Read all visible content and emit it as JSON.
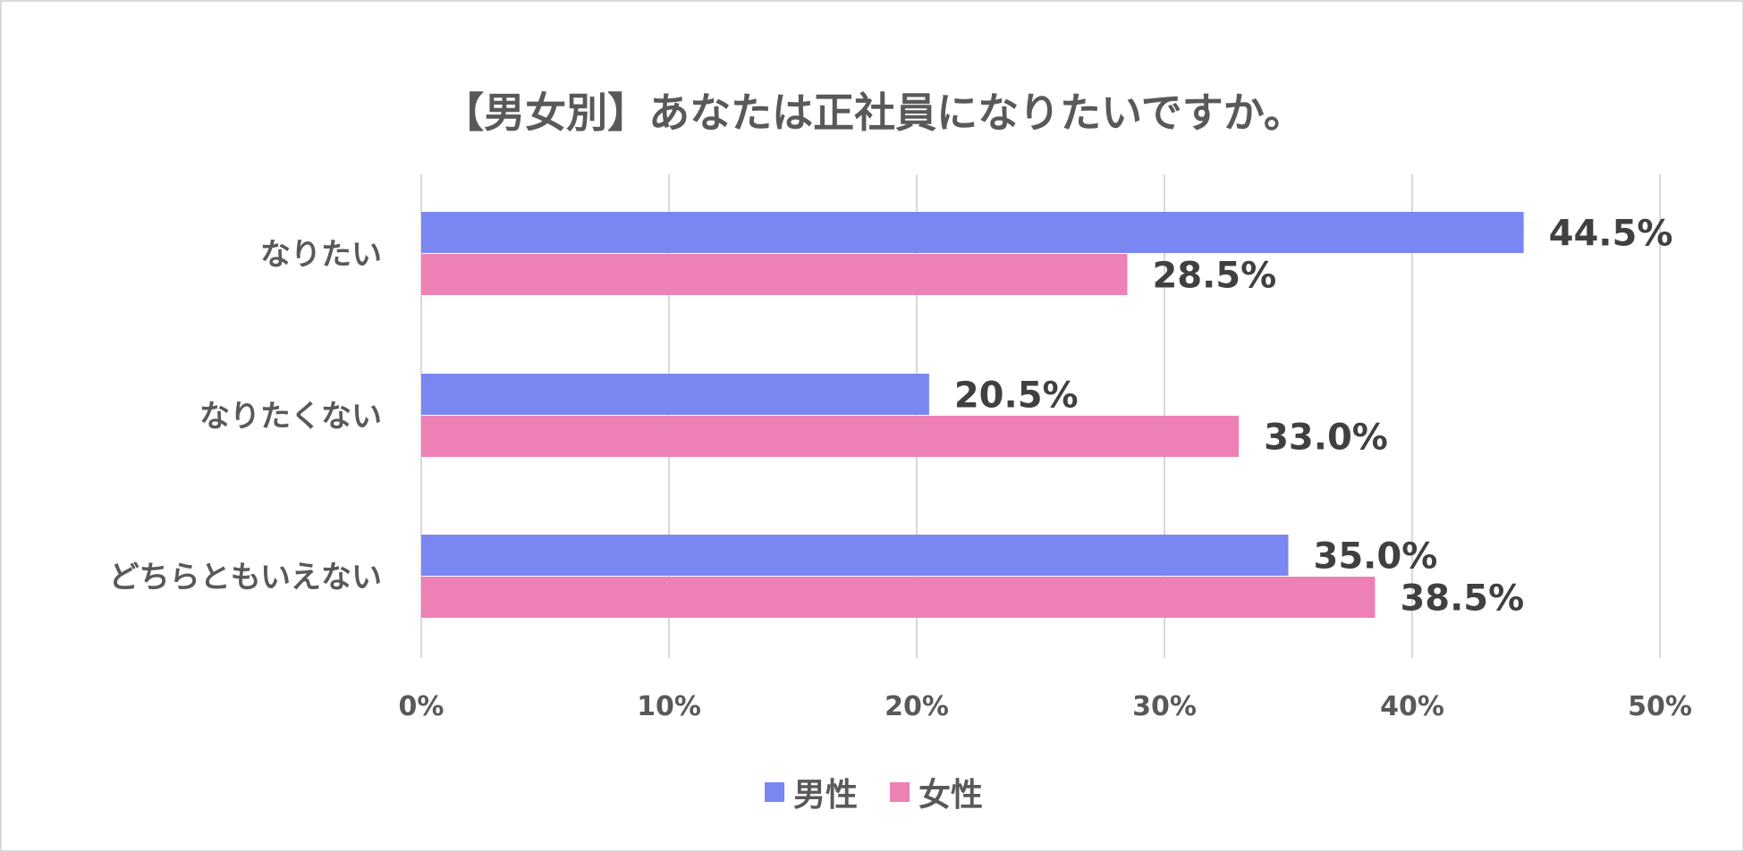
{
  "chart_data": {
    "type": "bar",
    "orientation": "horizontal",
    "title": "【男女別】あなたは正社員になりたいですか。",
    "categories": [
      "なりたい",
      "なりたくない",
      "どちらともいえない"
    ],
    "series": [
      {
        "name": "男性",
        "values": [
          44.5,
          20.5,
          35.0
        ],
        "color": "#7a87f2"
      },
      {
        "name": "女性",
        "values": [
          28.5,
          33.0,
          38.5
        ],
        "color": "#ed80b4"
      }
    ],
    "data_labels": [
      [
        "44.5%",
        "20.5%",
        "35.0%"
      ],
      [
        "28.5%",
        "33.0%",
        "38.5%"
      ]
    ],
    "xlim": [
      0,
      50
    ],
    "xticks": [
      "0%",
      "10%",
      "20%",
      "30%",
      "40%",
      "50%"
    ],
    "grid": true,
    "legend": "bottom"
  }
}
